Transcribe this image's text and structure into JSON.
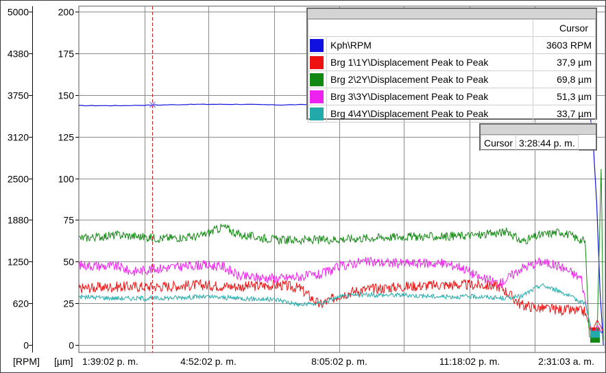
{
  "chart_data": {
    "type": "line",
    "x_ticks": [
      "1:39:02 p. m.",
      "4:52:02 p. m.",
      "8:05:02 p. m.",
      "11:18:02 p. m.",
      "2:31:03 a. m."
    ],
    "y_left_unit": "[RPM]",
    "y_left_ticks": [
      0,
      620,
      1250,
      1880,
      2500,
      3120,
      3750,
      4380,
      5000
    ],
    "y_left_range": [
      0,
      5000
    ],
    "y_right_unit": "[µm]",
    "y_right_ticks": [
      0,
      25,
      50,
      75,
      100,
      125,
      150,
      175,
      200
    ],
    "y_right_range": [
      0,
      200
    ],
    "grid": true,
    "cursor_time": "3:28:44 p. m.",
    "series": [
      {
        "name": "Kph\\RPM",
        "axis": "left",
        "color": "#1010e0",
        "cursor_value": "3603 RPM",
        "hours": [
          0,
          1,
          2,
          3,
          4,
          5,
          6,
          7,
          8,
          9,
          10,
          11,
          12,
          12.7,
          12.85,
          13.0,
          13.05
        ],
        "values": [
          3590,
          3590,
          3600,
          3610,
          3610,
          3600,
          3610,
          3605,
          3600,
          3605,
          3600,
          3600,
          3605,
          3600,
          2700,
          300,
          0
        ]
      },
      {
        "name": "Brg 1\\1Y\\Displacement Peak to Peak",
        "axis": "right",
        "color": "#ee1111",
        "cursor_value": "37,9 µm",
        "hours": [
          0,
          1,
          2,
          3,
          4,
          5,
          5.5,
          6,
          6.5,
          7,
          8,
          9,
          10,
          10.5,
          11,
          11.5,
          12,
          12.6,
          12.75,
          12.9,
          13.05
        ],
        "values": [
          34,
          35,
          35,
          36,
          35,
          36,
          34,
          24,
          30,
          33,
          35,
          36,
          36,
          35,
          24,
          22,
          21,
          20,
          7,
          15,
          8
        ]
      },
      {
        "name": "Brg 2\\2Y\\Displacement Peak to Peak",
        "axis": "right",
        "color": "#118811",
        "cursor_value": "69,8 µm",
        "hours": [
          0,
          1,
          2,
          3,
          3.6,
          4,
          5,
          6,
          7,
          8,
          9,
          10,
          10.7,
          11,
          11.5,
          12,
          12.6,
          12.7,
          12.8,
          12.9,
          13.0,
          13.05
        ],
        "values": [
          64,
          66,
          64,
          65,
          71,
          66,
          63,
          63,
          64,
          65,
          65,
          66,
          68,
          62,
          66,
          68,
          62,
          5,
          4,
          10,
          110,
          3
        ]
      },
      {
        "name": "Brg 3\\3Y\\Displacement Peak to Peak",
        "axis": "right",
        "color": "#ee22ee",
        "cursor_value": "51,3 µm",
        "hours": [
          0,
          1,
          1.3,
          2,
          3,
          3.6,
          4,
          5,
          6,
          6.5,
          7,
          8,
          9,
          9.5,
          10,
          10.5,
          11,
          11.5,
          12,
          12.5,
          12.65,
          12.8,
          12.9,
          13.05
        ],
        "values": [
          48,
          47,
          44,
          46,
          48,
          47,
          41,
          40,
          42,
          47,
          50,
          49,
          49,
          47,
          40,
          37,
          46,
          50,
          47,
          40,
          20,
          5,
          12,
          6
        ]
      },
      {
        "name": "Brg 4\\4Y\\Displacement Peak to Peak",
        "axis": "right",
        "color": "#22aaaa",
        "cursor_value": "33,7 µm",
        "hours": [
          0,
          1,
          2,
          3,
          4,
          5,
          5.5,
          6,
          6.5,
          7,
          8,
          9,
          10,
          10.5,
          11,
          11.5,
          12,
          12.3,
          12.6,
          12.8,
          12.9,
          13.05
        ],
        "values": [
          29,
          28,
          28,
          29,
          28,
          27,
          24,
          25,
          29,
          30,
          30,
          29,
          29,
          28,
          29,
          36,
          32,
          28,
          25,
          4,
          10,
          6
        ]
      }
    ]
  }
}
